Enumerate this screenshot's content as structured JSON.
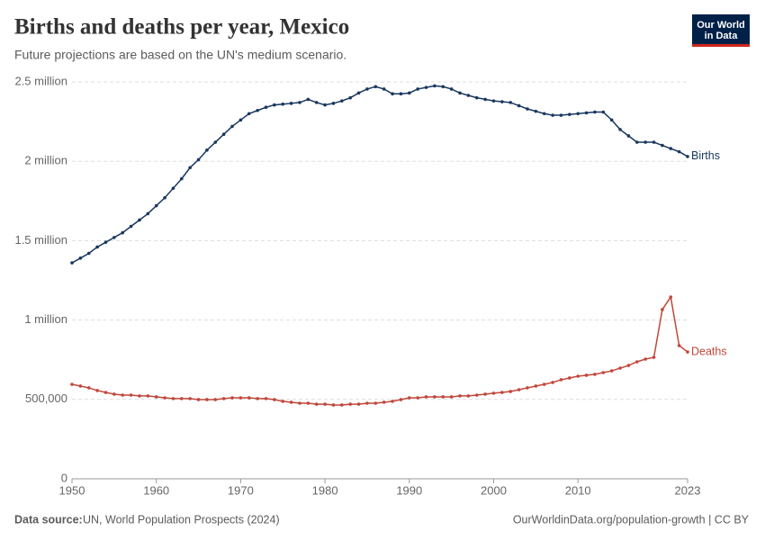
{
  "chart_data": {
    "type": "line",
    "title": "Births and deaths per year, Mexico",
    "subtitle": "Future projections are based on the UN's medium scenario.",
    "logo": [
      "Our World",
      "in Data"
    ],
    "source_label": "Data source:",
    "source": "UN, World Population Prospects (2024)",
    "footer_right": "OurWorldinData.org/population-growth | CC BY",
    "x": [
      1950,
      1951,
      1952,
      1953,
      1954,
      1955,
      1956,
      1957,
      1958,
      1959,
      1960,
      1961,
      1962,
      1963,
      1964,
      1965,
      1966,
      1967,
      1968,
      1969,
      1970,
      1971,
      1972,
      1973,
      1974,
      1975,
      1976,
      1977,
      1978,
      1979,
      1980,
      1981,
      1982,
      1983,
      1984,
      1985,
      1986,
      1987,
      1988,
      1989,
      1990,
      1991,
      1992,
      1993,
      1994,
      1995,
      1996,
      1997,
      1998,
      1999,
      2000,
      2001,
      2002,
      2003,
      2004,
      2005,
      2006,
      2007,
      2008,
      2009,
      2010,
      2011,
      2012,
      2013,
      2014,
      2015,
      2016,
      2017,
      2018,
      2019,
      2020,
      2021,
      2022,
      2023
    ],
    "series": [
      {
        "name": "Births",
        "color": "#18375f",
        "values": [
          1360000,
          1390000,
          1420000,
          1460000,
          1490000,
          1520000,
          1550000,
          1590000,
          1630000,
          1670000,
          1720000,
          1770000,
          1830000,
          1890000,
          1960000,
          2010000,
          2070000,
          2120000,
          2170000,
          2220000,
          2260000,
          2300000,
          2320000,
          2340000,
          2355000,
          2360000,
          2365000,
          2370000,
          2390000,
          2370000,
          2355000,
          2365000,
          2380000,
          2400000,
          2430000,
          2455000,
          2470000,
          2455000,
          2425000,
          2425000,
          2430000,
          2455000,
          2465000,
          2475000,
          2470000,
          2455000,
          2430000,
          2415000,
          2400000,
          2390000,
          2380000,
          2375000,
          2370000,
          2350000,
          2330000,
          2315000,
          2300000,
          2290000,
          2290000,
          2295000,
          2300000,
          2305000,
          2310000,
          2310000,
          2260000,
          2200000,
          2160000,
          2120000,
          2120000,
          2120000,
          2100000,
          2080000,
          2060000,
          2030000
        ]
      },
      {
        "name": "Deaths",
        "color": "#c0473b",
        "values": [
          595000,
          584000,
          573000,
          556000,
          544000,
          533000,
          527000,
          527000,
          522000,
          522000,
          516000,
          510000,
          505000,
          505000,
          505000,
          499000,
          499000,
          499000,
          505000,
          510000,
          510000,
          510000,
          505000,
          505000,
          499000,
          488000,
          482000,
          476000,
          476000,
          470000,
          470000,
          465000,
          465000,
          470000,
          470000,
          476000,
          476000,
          482000,
          488000,
          499000,
          510000,
          510000,
          516000,
          516000,
          516000,
          516000,
          522000,
          522000,
          527000,
          533000,
          539000,
          544000,
          550000,
          561000,
          573000,
          584000,
          595000,
          607000,
          624000,
          635000,
          646000,
          652000,
          658000,
          669000,
          680000,
          697000,
          714000,
          737000,
          754000,
          765000,
          1066000,
          1145000,
          839000,
          799000
        ]
      }
    ],
    "xlim": [
      1950,
      2023
    ],
    "xticks": [
      1950,
      1960,
      1970,
      1980,
      1990,
      2000,
      2010,
      2023
    ],
    "ylim": [
      0,
      2500000
    ],
    "yticks": [
      0,
      {
        "value": 500000,
        "label": "500,000"
      },
      {
        "value": 1000000,
        "label": "1 million"
      },
      {
        "value": 1500000,
        "label": "1.5 million"
      },
      {
        "value": 2000000,
        "label": "2 million"
      },
      {
        "value": 2500000,
        "label": "2.5 million"
      }
    ],
    "grid": true
  }
}
